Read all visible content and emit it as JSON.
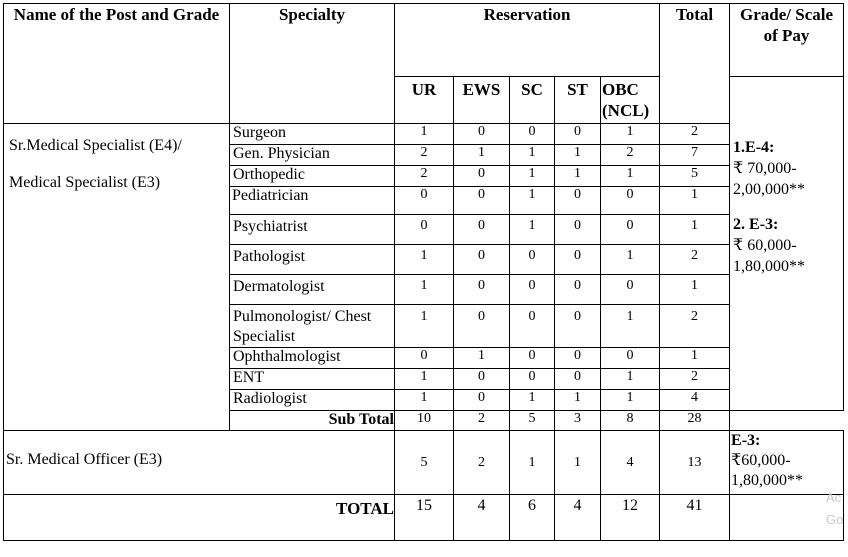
{
  "headers": {
    "post": "Name of the Post and Grade",
    "specialty": "Specialty",
    "reservation": "Reservation",
    "total": "Total",
    "grade": "Grade/ Scale of Pay",
    "cats": [
      "UR",
      "EWS",
      "SC",
      "ST",
      "OBC (NCL)"
    ]
  },
  "group1": {
    "post_line1": "Sr.Medical Specialist (E4)/",
    "post_line2": "Medical Specialist (E3)",
    "rows": [
      {
        "spec": "Surgeon",
        "vals": [
          "1",
          "0",
          "0",
          "0",
          "1",
          "2"
        ]
      },
      {
        "spec": "Gen. Physician",
        "vals": [
          "2",
          "1",
          "1",
          "1",
          "2",
          "7"
        ]
      },
      {
        "spec": "Orthopedic",
        "vals": [
          "2",
          "0",
          "1",
          "1",
          "1",
          "5"
        ]
      },
      {
        "spec": "Pediatrician",
        "vals": [
          "0",
          "0",
          "1",
          "0",
          "0",
          "1"
        ]
      },
      {
        "spec": "Psychiatrist",
        "vals": [
          "0",
          "0",
          "1",
          "0",
          "0",
          "1"
        ]
      },
      {
        "spec": "Pathologist",
        "vals": [
          "1",
          "0",
          "0",
          "0",
          "1",
          "2"
        ]
      },
      {
        "spec": "Dermatologist",
        "vals": [
          "1",
          "0",
          "0",
          "0",
          "0",
          "1"
        ]
      },
      {
        "spec": "Pulmonologist/ Chest Specialist",
        "vals": [
          "1",
          "0",
          "0",
          "0",
          "1",
          "2"
        ]
      },
      {
        "spec": "Ophthalmologist",
        "vals": [
          "0",
          "1",
          "0",
          "0",
          "0",
          "1"
        ]
      },
      {
        "spec": "ENT",
        "vals": [
          "1",
          "0",
          "0",
          "0",
          "1",
          "2"
        ]
      },
      {
        "spec": "Radiologist",
        "vals": [
          "1",
          "0",
          "1",
          "1",
          "1",
          "4"
        ]
      }
    ],
    "subtotal_label": "Sub Total",
    "subtotal": [
      "10",
      "2",
      "5",
      "3",
      "8",
      "28"
    ],
    "pay_e4_label": "1.E-4:",
    "pay_e4_value": "₹ 70,000-2,00,000**",
    "pay_e3_label": "2. E-3:",
    "pay_e3_value": "₹ 60,000-1,80,000**"
  },
  "group2": {
    "post": "Sr. Medical Officer (E3)",
    "vals": [
      "5",
      "2",
      "1",
      "1",
      "4",
      "13"
    ],
    "pay_label": "E-3:",
    "pay_value": "₹60,000-1,80,000**"
  },
  "total_row": {
    "label": "TOTAL",
    "vals": [
      "15",
      "4",
      "6",
      "4",
      "12",
      "41"
    ]
  },
  "watermark": {
    "line1": "Ac",
    "line2": "Go"
  }
}
